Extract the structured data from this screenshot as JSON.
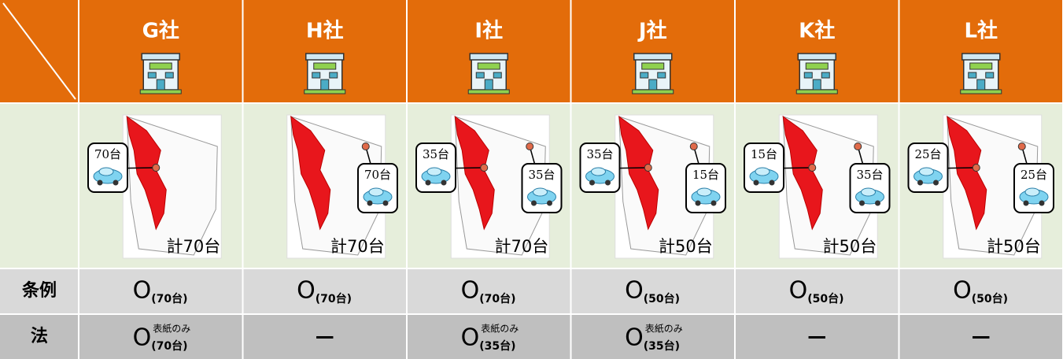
{
  "row_labels": [
    "条例",
    "法"
  ],
  "columns": [
    {
      "company": "G社",
      "left_callout": "70台",
      "total": "計70台",
      "jorei": {
        "mark": "O",
        "note": "(70台)"
      },
      "ho": {
        "mark": "O",
        "sup": "表紙のみ",
        "note": "(70台)"
      }
    },
    {
      "company": "H社",
      "right_callout": "70台",
      "total": "計70台",
      "jorei": {
        "mark": "O",
        "note": "(70台)"
      },
      "ho": {
        "mark": "—"
      }
    },
    {
      "company": "I社",
      "left_callout": "35台",
      "right_callout": "35台",
      "total": "計70台",
      "jorei": {
        "mark": "O",
        "note": "(70台)"
      },
      "ho": {
        "mark": "O",
        "sup": "表紙のみ",
        "note": "(35台)"
      }
    },
    {
      "company": "J社",
      "left_callout": "35台",
      "right_callout": "15台",
      "total": "計50台",
      "jorei": {
        "mark": "O",
        "note": "(50台)"
      },
      "ho": {
        "mark": "O",
        "sup": "表紙のみ",
        "note": "(35台)"
      }
    },
    {
      "company": "K社",
      "left_callout": "15台",
      "right_callout": "35台",
      "total": "計50台",
      "jorei": {
        "mark": "O",
        "note": "(50台)"
      },
      "ho": {
        "mark": "—"
      }
    },
    {
      "company": "L社",
      "left_callout": "25台",
      "right_callout": "25台",
      "total": "計50台",
      "jorei": {
        "mark": "O",
        "note": "(50台)"
      },
      "ho": {
        "mark": "—"
      }
    }
  ]
}
